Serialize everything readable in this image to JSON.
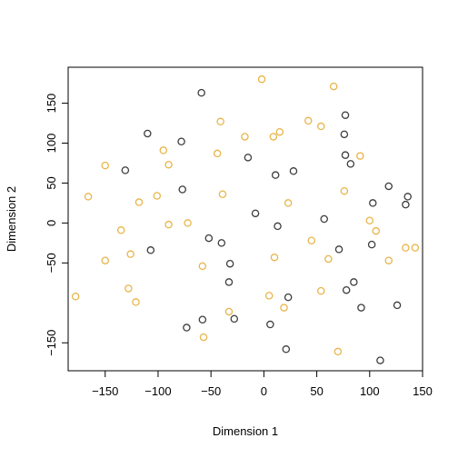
{
  "chart_data": {
    "type": "scatter",
    "title": "",
    "xlabel": "Dimension 1",
    "ylabel": "Dimension 2",
    "xlim": [
      -185,
      150
    ],
    "ylim": [
      -185,
      195
    ],
    "x_ticks": [
      -150,
      -100,
      -50,
      0,
      50,
      100,
      150
    ],
    "x_tick_labels": [
      "−150",
      "−100",
      "−50",
      "0",
      "50",
      "100",
      "150"
    ],
    "y_ticks": [
      -150,
      -50,
      0,
      50,
      100,
      150
    ],
    "y_tick_labels": [
      "−150",
      "−50",
      "0",
      "50",
      "100",
      "150"
    ],
    "grid": false,
    "series": [
      {
        "color": "#3d3d3d",
        "points": [
          [
            -59,
            163
          ],
          [
            -110,
            112
          ],
          [
            -78,
            102
          ],
          [
            -131,
            66
          ],
          [
            -77,
            42
          ],
          [
            -15,
            82
          ],
          [
            11,
            60
          ],
          [
            28,
            65
          ],
          [
            77,
            135
          ],
          [
            76,
            111
          ],
          [
            77,
            85
          ],
          [
            82,
            74
          ],
          [
            118,
            46
          ],
          [
            136,
            33
          ],
          [
            134,
            23
          ],
          [
            103,
            25
          ],
          [
            -107,
            -34
          ],
          [
            -52,
            -19
          ],
          [
            -40,
            -25
          ],
          [
            -32,
            -51
          ],
          [
            -8,
            12
          ],
          [
            13,
            -4
          ],
          [
            57,
            5
          ],
          [
            71,
            -33
          ],
          [
            102,
            -27
          ],
          [
            -33,
            -74
          ],
          [
            -73,
            -131
          ],
          [
            -58,
            -121
          ],
          [
            -28,
            -120
          ],
          [
            6,
            -127
          ],
          [
            23,
            -93
          ],
          [
            21,
            -158
          ],
          [
            78,
            -84
          ],
          [
            85,
            -74
          ],
          [
            92,
            -106
          ],
          [
            126,
            -103
          ],
          [
            110,
            -172
          ]
        ]
      },
      {
        "color": "#e8b54a",
        "points": [
          [
            -2,
            180
          ],
          [
            66,
            171
          ],
          [
            -41,
            127
          ],
          [
            42,
            128
          ],
          [
            54,
            121
          ],
          [
            15,
            114
          ],
          [
            9,
            108
          ],
          [
            -18,
            108
          ],
          [
            -95,
            91
          ],
          [
            -90,
            73
          ],
          [
            -150,
            72
          ],
          [
            -44,
            87
          ],
          [
            91,
            84
          ],
          [
            -166,
            33
          ],
          [
            -118,
            26
          ],
          [
            -101,
            34
          ],
          [
            -39,
            36
          ],
          [
            23,
            25
          ],
          [
            76,
            40
          ],
          [
            -135,
            -9
          ],
          [
            -90,
            -2
          ],
          [
            -72,
            0
          ],
          [
            -126,
            -39
          ],
          [
            -150,
            -47
          ],
          [
            -58,
            -54
          ],
          [
            10,
            -43
          ],
          [
            45,
            -22
          ],
          [
            61,
            -45
          ],
          [
            100,
            3
          ],
          [
            106,
            -10
          ],
          [
            118,
            -47
          ],
          [
            134,
            -31
          ],
          [
            143,
            -31
          ],
          [
            -178,
            -92
          ],
          [
            -128,
            -82
          ],
          [
            -121,
            -99
          ],
          [
            -33,
            -111
          ],
          [
            5,
            -91
          ],
          [
            19,
            -106
          ],
          [
            54,
            -85
          ],
          [
            -57,
            -143
          ],
          [
            70,
            -161
          ]
        ]
      }
    ]
  }
}
